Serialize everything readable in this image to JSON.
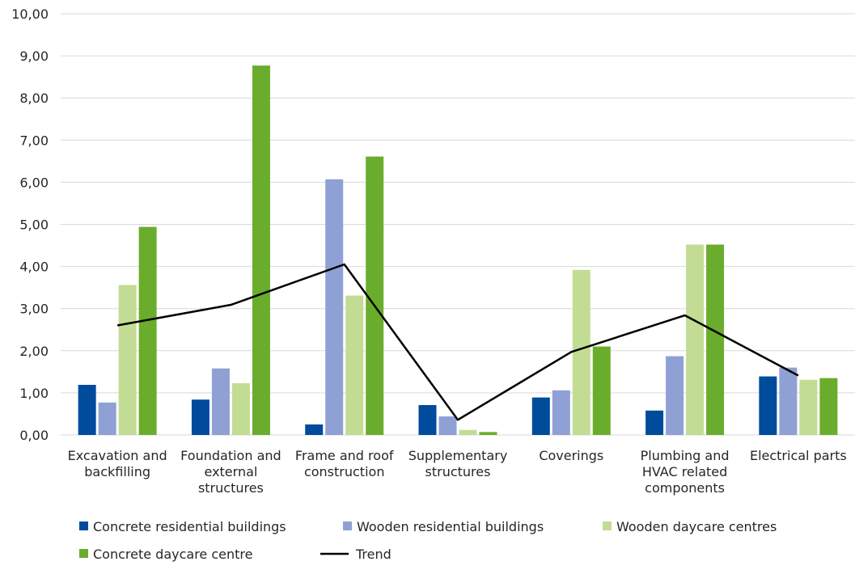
{
  "chart_data": {
    "type": "bar",
    "title": "",
    "xlabel": "",
    "ylabel": "",
    "ylim": [
      0,
      10
    ],
    "yticks": [
      "0,00",
      "1,00",
      "2,00",
      "3,00",
      "4,00",
      "5,00",
      "6,00",
      "7,00",
      "8,00",
      "9,00",
      "10,00"
    ],
    "grid": true,
    "legend_placement": "bottom",
    "categories": [
      [
        "Excavation and",
        "backfilling"
      ],
      [
        "Foundation and",
        "external",
        "structures"
      ],
      [
        "Frame and roof",
        "construction"
      ],
      [
        "Supplementary",
        "structures"
      ],
      [
        "Coverings"
      ],
      [
        "Plumbing and",
        "HVAC related",
        "components"
      ],
      [
        "Electrical parts"
      ]
    ],
    "series": [
      {
        "name": "Concrete residential buildings",
        "color": "#004b9b",
        "values": [
          1.19,
          0.84,
          0.25,
          0.71,
          0.89,
          0.58,
          1.39
        ]
      },
      {
        "name": "Wooden residential buildings",
        "color": "#8fa1d4",
        "values": [
          0.77,
          1.58,
          6.07,
          0.44,
          1.06,
          1.87,
          1.6
        ]
      },
      {
        "name": "Wooden daycare centres",
        "color": "#c3dc93",
        "values": [
          3.56,
          1.23,
          3.31,
          0.12,
          3.92,
          4.52,
          1.31
        ]
      },
      {
        "name": "Concrete daycare centre",
        "color": "#6aad2c",
        "values": [
          4.94,
          8.77,
          6.61,
          0.07,
          2.1,
          4.52,
          1.35
        ]
      }
    ],
    "trend": {
      "name": "Trend",
      "color": "#000000",
      "values": [
        2.6,
        3.09,
        4.05,
        0.36,
        1.97,
        2.84,
        1.41
      ]
    }
  }
}
